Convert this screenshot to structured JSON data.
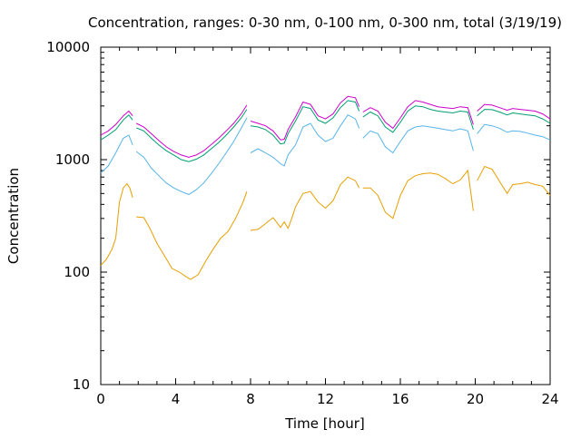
{
  "chart_data": {
    "type": "line",
    "title": "Concentration, ranges: 0-30 nm, 0-100 nm, 0-300 nm, total (3/19/19)",
    "xlabel": "Time [hour]",
    "ylabel": "Concentration",
    "xlim": [
      0,
      24
    ],
    "ylim": [
      10,
      10000
    ],
    "yscale": "log",
    "grid": false,
    "legend": "none",
    "x_ticks": [
      "0",
      "4",
      "8",
      "12",
      "16",
      "20",
      "24"
    ],
    "y_ticks": [
      "10",
      "100",
      "1000",
      "10000"
    ],
    "series": [
      {
        "color": "#e69f00",
        "segments": [
          {
            "x": [
              0.0,
              0.3,
              0.6,
              0.8,
              1.0,
              1.2,
              1.4,
              1.55,
              1.7
            ],
            "y": [
              115,
              130,
              160,
              200,
              420,
              560,
              610,
              560,
              460
            ]
          },
          {
            "x": [
              1.9,
              2.3,
              2.6,
              3.0,
              3.4,
              3.8,
              4.2,
              4.6,
              4.8,
              5.2,
              5.6,
              6.0,
              6.4,
              6.8,
              7.2,
              7.6,
              7.8
            ],
            "y": [
              310,
              305,
              250,
              180,
              140,
              108,
              100,
              90,
              86,
              95,
              125,
              160,
              200,
              230,
              300,
              420,
              520
            ]
          },
          {
            "x": [
              8.0,
              8.4,
              8.8,
              9.2,
              9.6,
              9.8,
              10.0,
              10.2,
              10.4,
              10.8,
              11.2,
              11.6,
              12.0,
              12.4,
              12.8,
              13.2,
              13.6,
              13.8
            ],
            "y": [
              235,
              240,
              270,
              305,
              250,
              280,
              245,
              300,
              380,
              500,
              520,
              420,
              370,
              430,
              600,
              700,
              650,
              560
            ]
          },
          {
            "x": [
              14.0,
              14.4,
              14.8,
              15.2,
              15.6,
              16.0,
              16.4,
              16.8,
              17.2,
              17.6,
              18.0,
              18.4,
              18.8,
              19.2,
              19.6,
              19.9
            ],
            "y": [
              560,
              560,
              480,
              340,
              300,
              480,
              650,
              720,
              750,
              760,
              740,
              680,
              610,
              660,
              800,
              350
            ]
          },
          {
            "x": [
              20.1,
              20.5,
              20.9,
              21.3,
              21.7,
              22.0,
              22.4,
              22.8,
              23.2,
              23.6,
              24.0
            ],
            "y": [
              650,
              870,
              820,
              640,
              500,
              600,
              610,
              630,
              600,
              580,
              480
            ]
          }
        ]
      },
      {
        "color": "#56b4e9",
        "segments": [
          {
            "x": [
              0.0,
              0.4,
              0.8,
              1.2,
              1.5,
              1.7
            ],
            "y": [
              760,
              880,
              1150,
              1550,
              1650,
              1350
            ]
          },
          {
            "x": [
              1.9,
              2.3,
              2.7,
              3.1,
              3.5,
              3.9,
              4.3,
              4.7,
              5.1,
              5.5,
              5.9,
              6.3,
              6.7,
              7.1,
              7.5,
              7.8
            ],
            "y": [
              1180,
              1050,
              840,
              720,
              620,
              560,
              520,
              490,
              540,
              620,
              750,
              920,
              1150,
              1450,
              1900,
              2350
            ]
          },
          {
            "x": [
              8.0,
              8.4,
              8.8,
              9.2,
              9.6,
              9.8,
              10.0,
              10.4,
              10.8,
              11.2,
              11.6,
              12.0,
              12.4,
              12.8,
              13.2,
              13.6,
              13.8
            ],
            "y": [
              1150,
              1250,
              1150,
              1050,
              920,
              880,
              1100,
              1350,
              1950,
              2100,
              1650,
              1450,
              1550,
              2000,
              2500,
              2300,
              1900
            ]
          },
          {
            "x": [
              14.0,
              14.4,
              14.8,
              15.2,
              15.6,
              16.0,
              16.4,
              16.8,
              17.2,
              17.6,
              18.0,
              18.4,
              18.8,
              19.2,
              19.6,
              19.9
            ],
            "y": [
              1550,
              1800,
              1700,
              1300,
              1150,
              1450,
              1800,
              1950,
              2000,
              1950,
              1900,
              1850,
              1800,
              1880,
              1800,
              1200
            ]
          },
          {
            "x": [
              20.1,
              20.5,
              20.9,
              21.3,
              21.7,
              22.0,
              22.4,
              22.8,
              23.2,
              23.6,
              24.0
            ],
            "y": [
              1700,
              2050,
              2000,
              1900,
              1750,
              1800,
              1780,
              1720,
              1650,
              1600,
              1500
            ]
          }
        ]
      },
      {
        "color": "#009e73",
        "segments": [
          {
            "x": [
              0.0,
              0.4,
              0.8,
              1.2,
              1.5,
              1.7
            ],
            "y": [
              1500,
              1650,
              1850,
              2250,
              2500,
              2250
            ]
          },
          {
            "x": [
              1.9,
              2.3,
              2.7,
              3.1,
              3.5,
              3.9,
              4.3,
              4.7,
              5.1,
              5.5,
              5.9,
              6.3,
              6.7,
              7.1,
              7.5,
              7.8
            ],
            "y": [
              1920,
              1800,
              1550,
              1350,
              1200,
              1100,
              1000,
              960,
              1010,
              1100,
              1250,
              1420,
              1650,
              1950,
              2350,
              2800
            ]
          },
          {
            "x": [
              8.0,
              8.4,
              8.8,
              9.2,
              9.6,
              9.8,
              10.0,
              10.4,
              10.8,
              11.2,
              11.6,
              12.0,
              12.4,
              12.8,
              13.2,
              13.6,
              13.8
            ],
            "y": [
              2000,
              1950,
              1850,
              1650,
              1380,
              1400,
              1700,
              2200,
              2950,
              2850,
              2250,
              2100,
              2350,
              2900,
              3350,
              3250,
              2700
            ]
          },
          {
            "x": [
              14.0,
              14.4,
              14.8,
              15.2,
              15.6,
              16.0,
              16.4,
              16.8,
              17.2,
              17.6,
              18.0,
              18.4,
              18.8,
              19.2,
              19.6,
              19.9
            ],
            "y": [
              2400,
              2650,
              2450,
              1950,
              1750,
              2150,
              2700,
              3000,
              2950,
              2800,
              2700,
              2650,
              2600,
              2700,
              2650,
              1850
            ]
          },
          {
            "x": [
              20.1,
              20.5,
              20.9,
              21.3,
              21.7,
              22.0,
              22.4,
              22.8,
              23.2,
              23.6,
              24.0
            ],
            "y": [
              2450,
              2800,
              2780,
              2650,
              2500,
              2600,
              2550,
              2500,
              2450,
              2300,
              2100
            ]
          }
        ]
      },
      {
        "color": "#cc00cc",
        "segments": [
          {
            "x": [
              0.0,
              0.4,
              0.8,
              1.2,
              1.5,
              1.7
            ],
            "y": [
              1650,
              1800,
              2050,
              2450,
              2700,
              2450
            ]
          },
          {
            "x": [
              1.9,
              2.3,
              2.7,
              3.1,
              3.5,
              3.9,
              4.3,
              4.7,
              5.1,
              5.5,
              5.9,
              6.3,
              6.7,
              7.1,
              7.5,
              7.8
            ],
            "y": [
              2100,
              1950,
              1700,
              1480,
              1300,
              1180,
              1100,
              1050,
              1100,
              1200,
              1360,
              1550,
              1800,
              2100,
              2550,
              3050
            ]
          },
          {
            "x": [
              8.0,
              8.4,
              8.8,
              9.2,
              9.6,
              9.8,
              10.0,
              10.4,
              10.8,
              11.2,
              11.6,
              12.0,
              12.4,
              12.8,
              13.2,
              13.6,
              13.8
            ],
            "y": [
              2200,
              2100,
              2000,
              1800,
              1500,
              1520,
              1850,
              2400,
              3250,
              3100,
              2450,
              2300,
              2550,
              3200,
              3650,
              3550,
              2950
            ]
          },
          {
            "x": [
              14.0,
              14.4,
              14.8,
              15.2,
              15.6,
              16.0,
              16.4,
              16.8,
              17.2,
              17.6,
              18.0,
              18.4,
              18.8,
              19.2,
              19.6,
              19.9
            ],
            "y": [
              2650,
              2900,
              2700,
              2150,
              1900,
              2350,
              2950,
              3350,
              3250,
              3100,
              2950,
              2900,
              2850,
              2950,
              2900,
              2050
            ]
          },
          {
            "x": [
              20.1,
              20.5,
              20.9,
              21.3,
              21.7,
              22.0,
              22.4,
              22.8,
              23.2,
              23.6,
              24.0
            ],
            "y": [
              2700,
              3100,
              3050,
              2900,
              2750,
              2850,
              2800,
              2750,
              2700,
              2550,
              2300
            ]
          }
        ]
      }
    ]
  }
}
